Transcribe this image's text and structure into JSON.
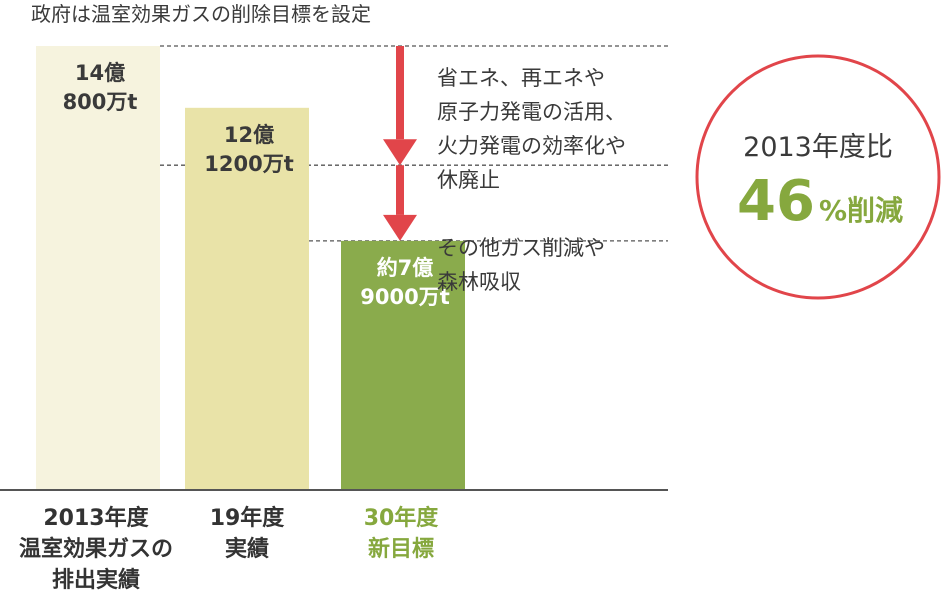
{
  "chart_data": {
    "type": "bar",
    "title": "政府は温室効果ガスの削除目標を設定",
    "categories": [
      [
        "2013年度",
        "温室効果ガスの",
        "排出実績"
      ],
      [
        "19年度",
        "実績"
      ],
      [
        "30年度",
        "新目標"
      ]
    ],
    "values": [
      14.08,
      12.12,
      7.9
    ],
    "unit": "億t",
    "value_labels": [
      [
        "14億",
        "800万t"
      ],
      [
        "12億",
        "1200万t"
      ],
      [
        "約7億",
        "9000万t"
      ]
    ],
    "ylim": [
      0,
      14.08
    ],
    "grid": false,
    "reference_levels": [
      14.08,
      10.3,
      7.9
    ],
    "annotations": [
      [
        "省エネ、再エネや",
        "原子力発電の活用、",
        "火力発電の効率化や",
        "休廃止"
      ],
      [
        "その他ガス削減や",
        "森林吸収"
      ]
    ],
    "callout": {
      "line1": "2013年度比",
      "number": "46",
      "suffix": "%削減"
    }
  },
  "colors": {
    "bar_2013": "#f6f3de",
    "bar_19": "#e9e3a8",
    "bar_30": "#8aab4c",
    "bar_label_dark": "#3a3a3a",
    "bar_label_light": "#ffffff",
    "category_dark": "#333333",
    "category_green": "#86a83e",
    "arrow": "#e1454a",
    "circle": "#e1454a",
    "callout_green": "#86a83e",
    "guide_line": "#555555",
    "baseline": "#555555"
  }
}
